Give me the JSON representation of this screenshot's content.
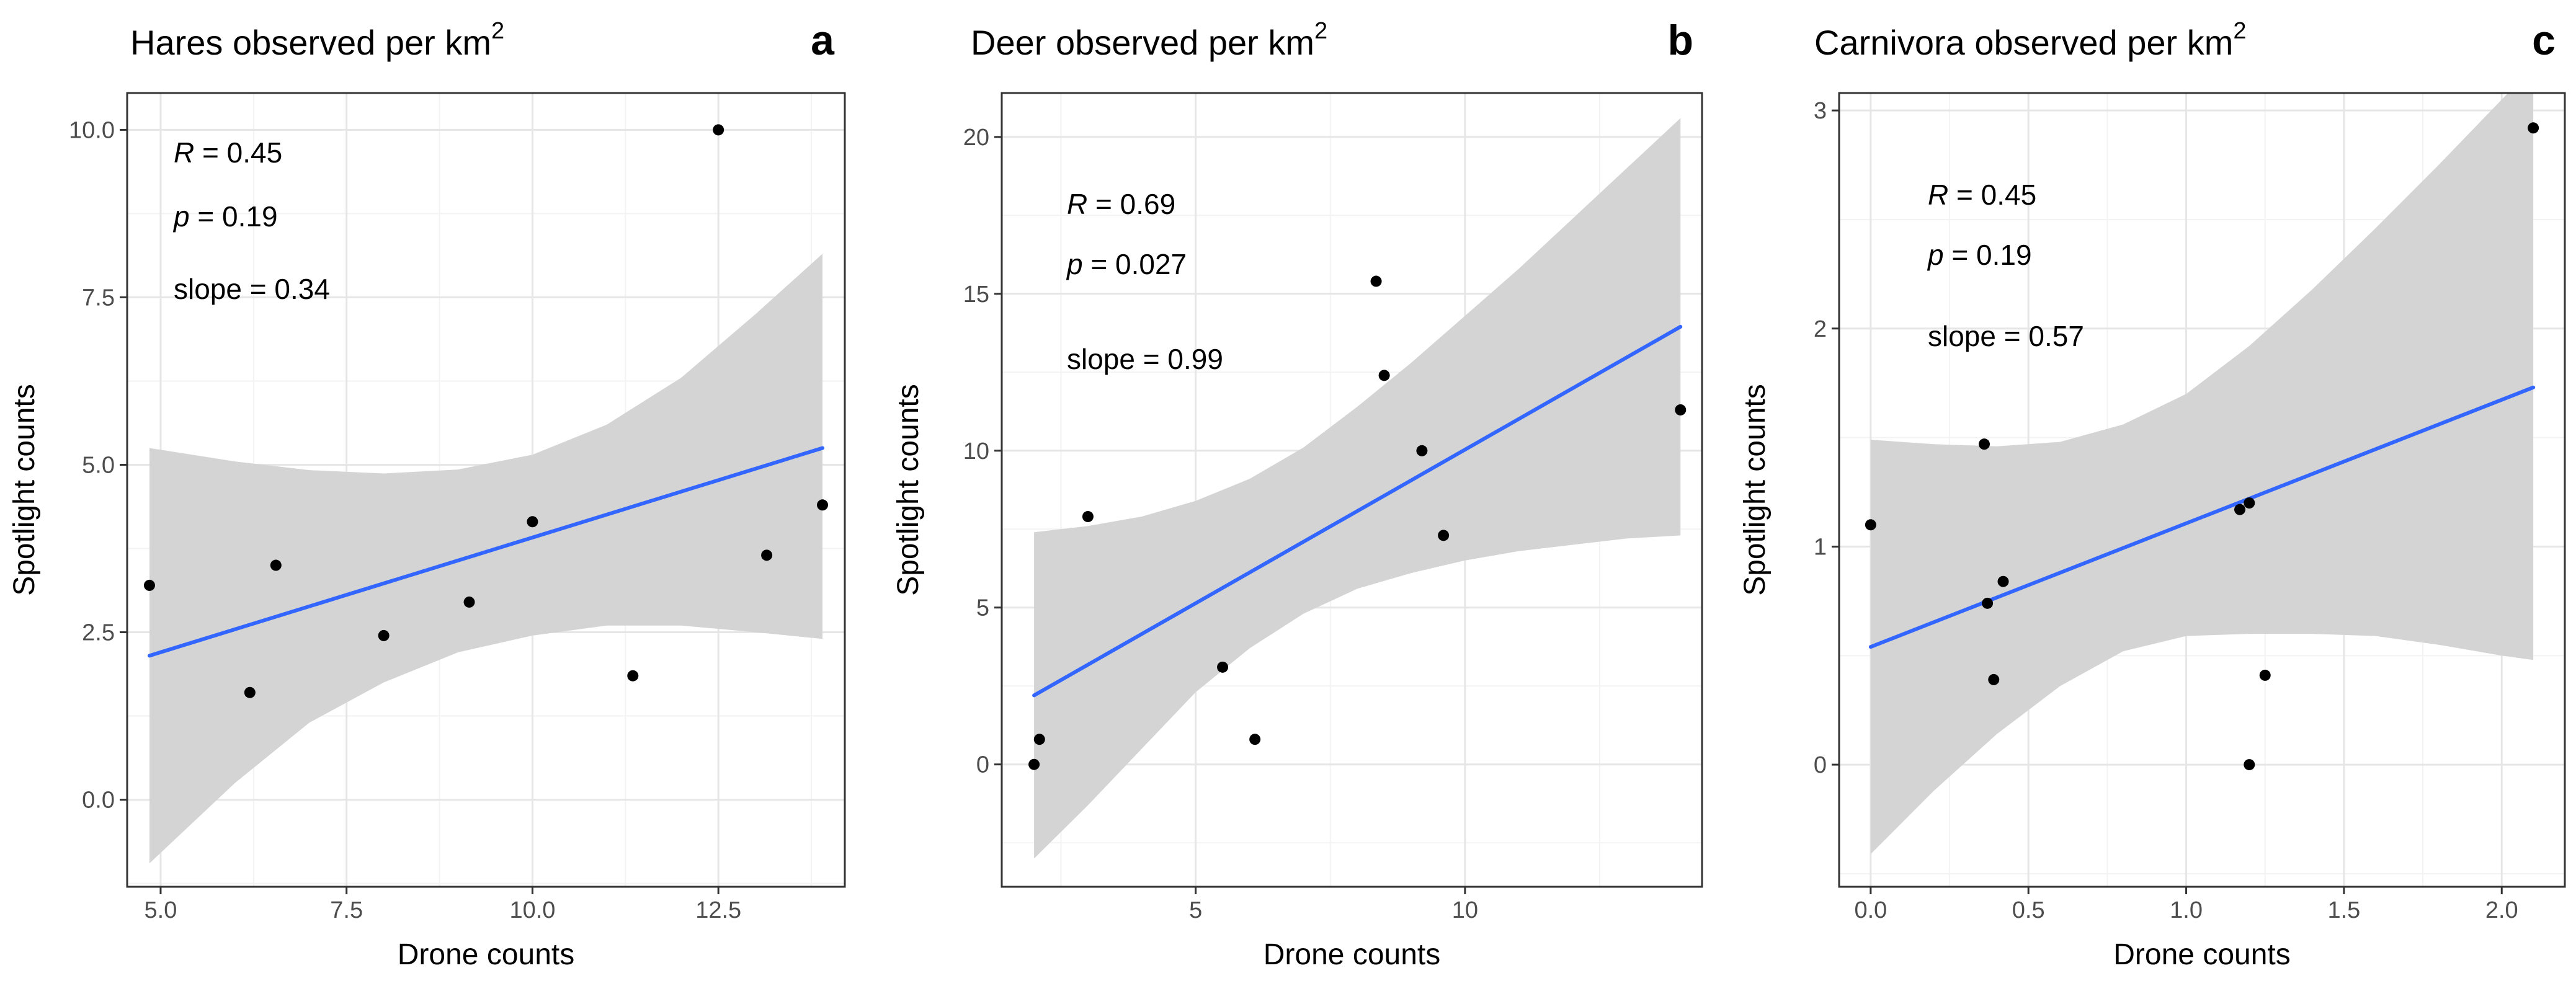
{
  "chart_data": [
    {
      "type": "scatter",
      "panel_letter": "a",
      "title": "Hares observed per km",
      "title_superscript": "2",
      "xlabel": "Drone counts",
      "ylabel": "Spotlight counts",
      "xlim": [
        4.55,
        14.2
      ],
      "ylim": [
        -1.3,
        10.55
      ],
      "x_ticks": [
        5.0,
        7.5,
        10.0,
        12.5
      ],
      "x_tick_labels": [
        "5.0",
        "7.5",
        "10.0",
        "12.5"
      ],
      "y_ticks": [
        0.0,
        2.5,
        5.0,
        7.5,
        10.0
      ],
      "y_tick_labels": [
        "0.0",
        "2.5",
        "5.0",
        "7.5",
        "10.0"
      ],
      "points": [
        {
          "x": 4.85,
          "y": 3.2
        },
        {
          "x": 6.2,
          "y": 1.6
        },
        {
          "x": 6.55,
          "y": 3.5
        },
        {
          "x": 8.0,
          "y": 2.45
        },
        {
          "x": 9.15,
          "y": 2.95
        },
        {
          "x": 10.0,
          "y": 4.15
        },
        {
          "x": 11.35,
          "y": 1.85
        },
        {
          "x": 12.5,
          "y": 10.0
        },
        {
          "x": 13.15,
          "y": 3.65
        },
        {
          "x": 13.9,
          "y": 4.4
        }
      ],
      "fit_line": {
        "x": [
          4.85,
          13.9
        ],
        "y": [
          2.15,
          5.25
        ]
      },
      "confidence_band": {
        "x": [
          4.85,
          6.0,
          7.0,
          8.0,
          9.0,
          10.0,
          11.0,
          12.0,
          13.0,
          13.9
        ],
        "upper": [
          5.25,
          5.05,
          4.92,
          4.87,
          4.93,
          5.15,
          5.6,
          6.3,
          7.25,
          8.15
        ],
        "lower": [
          -0.95,
          0.25,
          1.15,
          1.75,
          2.2,
          2.45,
          2.6,
          2.6,
          2.5,
          2.4
        ]
      },
      "annotations": [
        {
          "italic": "R",
          "text": " = 0.45"
        },
        {
          "italic": "p",
          "text": " = 0.19"
        },
        {
          "italic": "",
          "text": "slope = 0.34"
        }
      ]
    },
    {
      "type": "scatter",
      "panel_letter": "b",
      "title": "Deer observed per km",
      "title_superscript": "2",
      "xlabel": "Drone counts",
      "ylabel": "Spotlight counts",
      "xlim": [
        1.4,
        14.4
      ],
      "ylim": [
        -3.9,
        21.4
      ],
      "x_ticks": [
        5,
        10
      ],
      "x_tick_labels": [
        "5",
        "10"
      ],
      "y_ticks": [
        0,
        5,
        10,
        15,
        20
      ],
      "y_tick_labels": [
        "0",
        "5",
        "10",
        "15",
        "20"
      ],
      "points": [
        {
          "x": 2.0,
          "y": 0.0
        },
        {
          "x": 2.1,
          "y": 0.8
        },
        {
          "x": 3.0,
          "y": 7.9
        },
        {
          "x": 5.5,
          "y": 3.1
        },
        {
          "x": 6.1,
          "y": 0.8
        },
        {
          "x": 8.35,
          "y": 15.4
        },
        {
          "x": 8.5,
          "y": 12.4
        },
        {
          "x": 9.2,
          "y": 10.0
        },
        {
          "x": 9.6,
          "y": 7.3
        },
        {
          "x": 14.0,
          "y": 11.3
        }
      ],
      "fit_line": {
        "x": [
          2.0,
          14.0
        ],
        "y": [
          2.2,
          13.95
        ]
      },
      "confidence_band": {
        "x": [
          2.0,
          3.0,
          4.0,
          5.0,
          6.0,
          7.0,
          8.0,
          9.0,
          10.0,
          11.0,
          12.0,
          13.0,
          14.0
        ],
        "upper": [
          7.4,
          7.6,
          7.9,
          8.4,
          9.1,
          10.1,
          11.4,
          12.8,
          14.3,
          15.8,
          17.4,
          19.0,
          20.6
        ],
        "lower": [
          -3.0,
          -1.3,
          0.5,
          2.3,
          3.7,
          4.8,
          5.6,
          6.1,
          6.5,
          6.8,
          7.0,
          7.2,
          7.3
        ]
      },
      "annotations": [
        {
          "italic": "R",
          "text": " = 0.69"
        },
        {
          "italic": "p",
          "text": " = 0.027"
        },
        {
          "italic": "",
          "text": "slope = 0.99"
        }
      ]
    },
    {
      "type": "scatter",
      "panel_letter": "c",
      "title": "Carnivora observed per km",
      "title_superscript": "2",
      "xlabel": "Drone counts",
      "ylabel": "Spotlight counts",
      "xlim": [
        -0.1,
        2.2
      ],
      "ylim": [
        -0.56,
        3.08
      ],
      "x_ticks": [
        0.0,
        0.5,
        1.0,
        1.5,
        2.0
      ],
      "x_tick_labels": [
        "0.0",
        "0.5",
        "1.0",
        "1.5",
        "2.0"
      ],
      "y_ticks": [
        0,
        1,
        2,
        3
      ],
      "y_tick_labels": [
        "0",
        "1",
        "2",
        "3"
      ],
      "points": [
        {
          "x": 0.0,
          "y": 1.1
        },
        {
          "x": 0.36,
          "y": 1.47
        },
        {
          "x": 0.37,
          "y": 0.74
        },
        {
          "x": 0.39,
          "y": 0.39
        },
        {
          "x": 0.42,
          "y": 0.84
        },
        {
          "x": 1.17,
          "y": 1.17
        },
        {
          "x": 1.2,
          "y": 1.2
        },
        {
          "x": 1.2,
          "y": 0.0
        },
        {
          "x": 1.25,
          "y": 0.41
        },
        {
          "x": 2.1,
          "y": 2.92
        }
      ],
      "fit_line": {
        "x": [
          0.0,
          2.1
        ],
        "y": [
          0.54,
          1.73
        ]
      },
      "confidence_band": {
        "x": [
          0.0,
          0.2,
          0.4,
          0.6,
          0.8,
          1.0,
          1.2,
          1.4,
          1.6,
          1.8,
          2.0,
          2.1
        ],
        "upper": [
          1.49,
          1.47,
          1.46,
          1.48,
          1.56,
          1.7,
          1.92,
          2.18,
          2.46,
          2.75,
          3.05,
          3.2
        ],
        "lower": [
          -0.41,
          -0.12,
          0.14,
          0.36,
          0.52,
          0.59,
          0.6,
          0.6,
          0.59,
          0.55,
          0.5,
          0.48
        ]
      },
      "annotations": [
        {
          "italic": "R",
          "text": " = 0.45"
        },
        {
          "italic": "p",
          "text": " = 0.19"
        },
        {
          "italic": "",
          "text": "slope = 0.57"
        }
      ]
    }
  ],
  "style": {
    "point_color": "#000000",
    "fit_color": "#3366ff",
    "band_color": "#d4d4d4",
    "grid_major_color": "#e6e6e6",
    "grid_minor_color": "#f3f3f3",
    "axis_color": "#333333",
    "tick_label_color": "#4d4d4d"
  }
}
